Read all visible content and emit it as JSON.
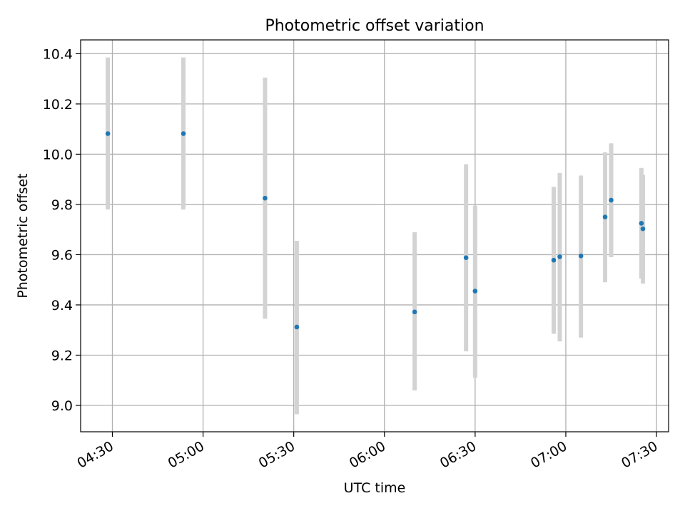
{
  "chart_data": {
    "type": "scatter",
    "title": "Photometric offset variation",
    "xlabel": "UTC time",
    "ylabel": "Photometric offset",
    "x_ticks": [
      "04:30",
      "05:00",
      "05:30",
      "06:00",
      "06:30",
      "07:00",
      "07:30"
    ],
    "y_ticks": [
      "9.0",
      "9.2",
      "9.4",
      "9.6",
      "9.8",
      "10.0",
      "10.2",
      "10.4"
    ],
    "xlim": [
      "04:19:30",
      "07:34:00"
    ],
    "ylim": [
      8.895,
      10.455
    ],
    "grid": true,
    "legend": "none",
    "colors": {
      "point": "#1f77b4",
      "errorbar": "#d3d3d3",
      "grid": "#b0b0b0"
    },
    "points": [
      {
        "x": "04:28:30",
        "y": 10.082,
        "yerr_low": 9.78,
        "yerr_high": 10.385
      },
      {
        "x": "04:53:30",
        "y": 10.082,
        "yerr_low": 9.78,
        "yerr_high": 10.385
      },
      {
        "x": "05:20:30",
        "y": 9.825,
        "yerr_low": 9.345,
        "yerr_high": 10.305
      },
      {
        "x": "05:31:00",
        "y": 9.312,
        "yerr_low": 8.965,
        "yerr_high": 9.655
      },
      {
        "x": "06:10:00",
        "y": 9.372,
        "yerr_low": 9.06,
        "yerr_high": 9.69
      },
      {
        "x": "06:27:00",
        "y": 9.588,
        "yerr_low": 9.215,
        "yerr_high": 9.96
      },
      {
        "x": "06:30:00",
        "y": 9.455,
        "yerr_low": 9.11,
        "yerr_high": 9.795
      },
      {
        "x": "06:56:00",
        "y": 9.578,
        "yerr_low": 9.285,
        "yerr_high": 9.87
      },
      {
        "x": "06:58:00",
        "y": 9.592,
        "yerr_low": 9.255,
        "yerr_high": 9.925
      },
      {
        "x": "07:05:00",
        "y": 9.595,
        "yerr_low": 9.27,
        "yerr_high": 9.915
      },
      {
        "x": "07:13:00",
        "y": 9.75,
        "yerr_low": 9.49,
        "yerr_high": 10.008
      },
      {
        "x": "07:15:00",
        "y": 9.817,
        "yerr_low": 9.59,
        "yerr_high": 10.043
      },
      {
        "x": "07:25:00",
        "y": 9.725,
        "yerr_low": 9.505,
        "yerr_high": 9.945
      },
      {
        "x": "07:25:30",
        "y": 9.703,
        "yerr_low": 9.485,
        "yerr_high": 9.918
      }
    ]
  }
}
